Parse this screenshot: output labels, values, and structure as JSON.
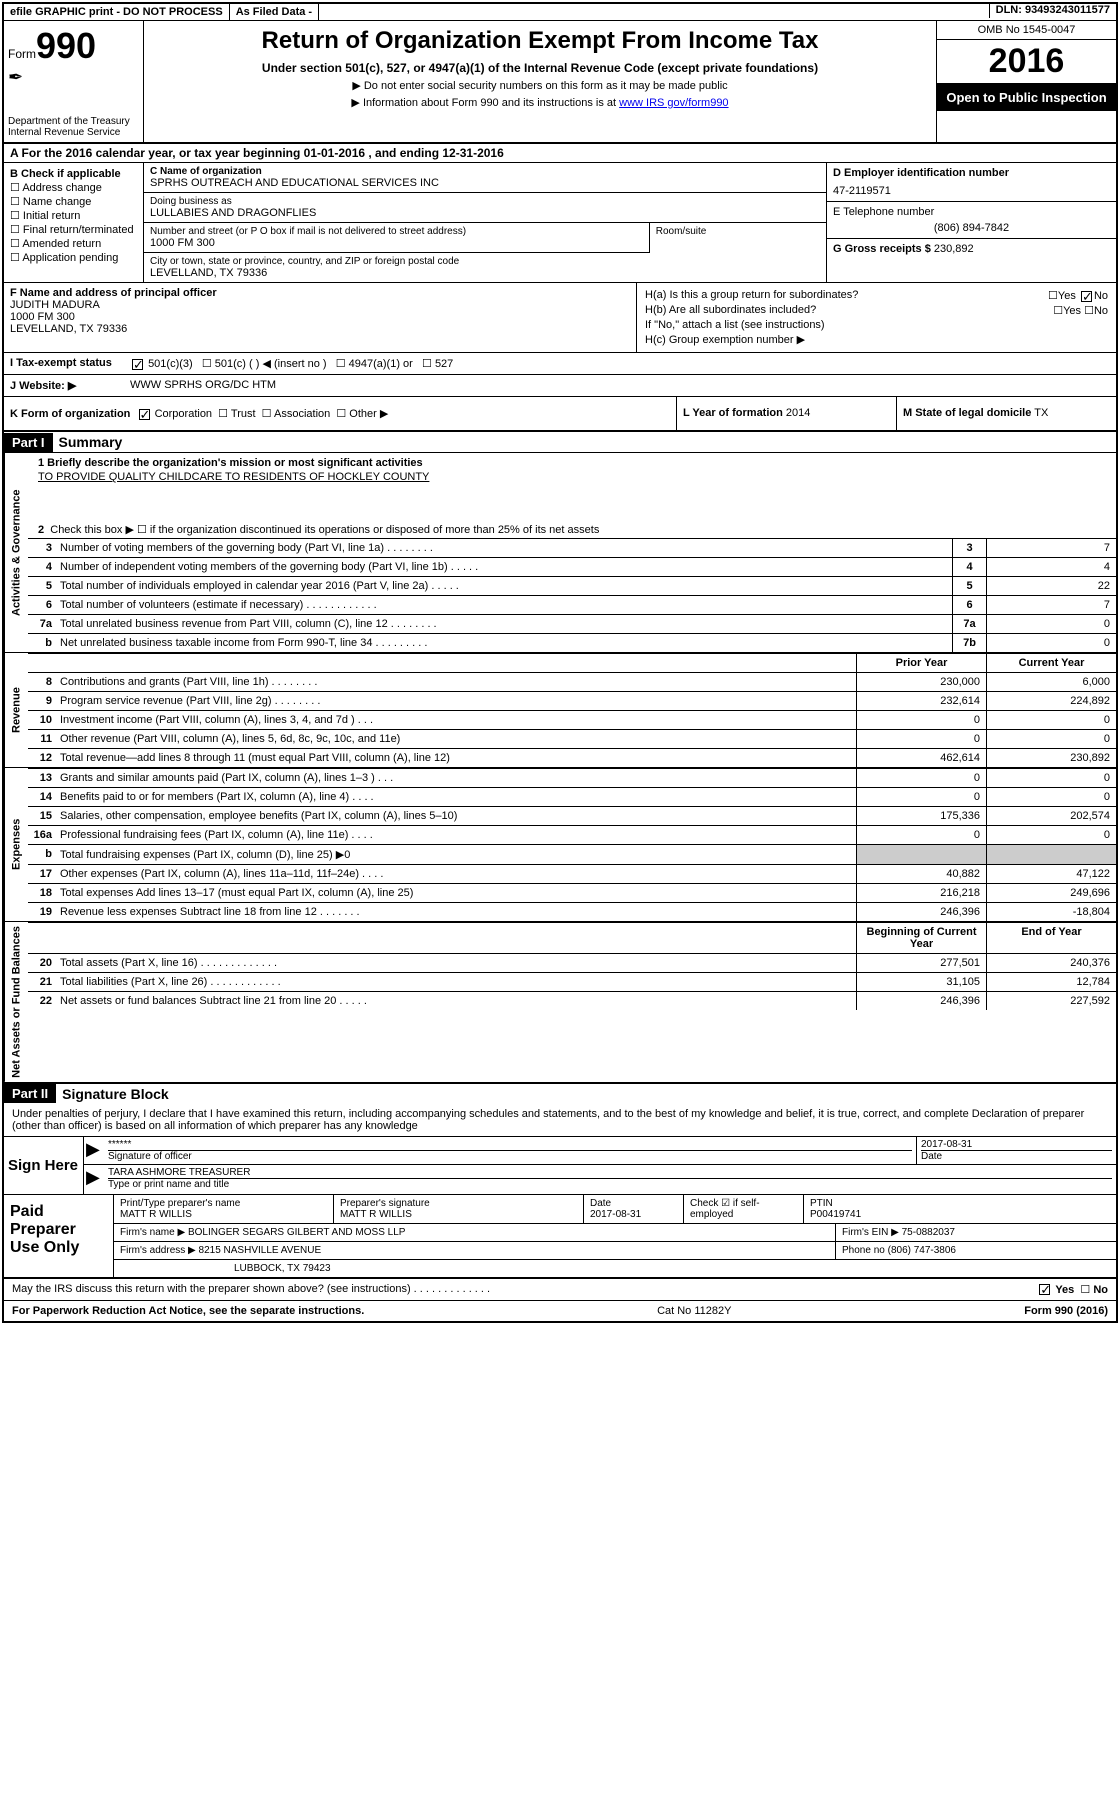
{
  "topbar": {
    "efile": "efile GRAPHIC print - DO NOT PROCESS",
    "asfiled": "As Filed Data -",
    "dln": "DLN: 93493243011577"
  },
  "header": {
    "form_prefix": "Form",
    "form_number": "990",
    "dept": "Department of the Treasury\nInternal Revenue Service",
    "title": "Return of Organization Exempt From Income Tax",
    "subtitle": "Under section 501(c), 527, or 4947(a)(1) of the Internal Revenue Code (except private foundations)",
    "note1": "▶ Do not enter social security numbers on this form as it may be made public",
    "note2_pre": "▶ Information about Form 990 and its instructions is at ",
    "note2_link": "www IRS gov/form990",
    "omb": "OMB No 1545-0047",
    "year": "2016",
    "inspect": "Open to Public Inspection"
  },
  "row_a": "A   For the 2016 calendar year, or tax year beginning 01-01-2016   , and ending 12-31-2016",
  "section_b": {
    "hdr": "B Check if applicable",
    "items": [
      "Address change",
      "Name change",
      "Initial return",
      "Final return/terminated",
      "Amended return",
      "Application pending"
    ]
  },
  "section_c": {
    "name_lbl": "C Name of organization",
    "name": "SPRHS OUTREACH AND EDUCATIONAL SERVICES INC",
    "dba_lbl": "Doing business as",
    "dba": "LULLABIES AND DRAGONFLIES",
    "addr_lbl": "Number and street (or P O  box if mail is not delivered to street address)",
    "room_lbl": "Room/suite",
    "addr": "1000 FM 300",
    "city_lbl": "City or town, state or province, country, and ZIP or foreign postal code",
    "city": "LEVELLAND, TX  79336"
  },
  "section_d": {
    "lbl": "D Employer identification number",
    "val": "47-2119571"
  },
  "section_e": {
    "lbl": "E Telephone number",
    "val": "(806) 894-7842"
  },
  "section_g": {
    "lbl": "G Gross receipts $",
    "val": "230,892"
  },
  "section_f": {
    "lbl": "F  Name and address of principal officer",
    "name": "JUDITH MADURA",
    "addr1": "1000 FM 300",
    "addr2": "LEVELLAND, TX  79336"
  },
  "section_h": {
    "ha": "H(a)  Is this a group return for subordinates?",
    "ha_yes": "Yes",
    "ha_no": "No",
    "hb": "H(b)  Are all subordinates included?",
    "hb_yes": "Yes",
    "hb_no": "No",
    "hb_note": "If \"No,\" attach a list  (see instructions)",
    "hc": "H(c)  Group exemption number ▶"
  },
  "section_i": {
    "lbl": "I   Tax-exempt status",
    "o1": "501(c)(3)",
    "o2": "501(c) (   ) ◀ (insert no )",
    "o3": "4947(a)(1) or",
    "o4": "527"
  },
  "section_j": {
    "lbl": "J   Website: ▶",
    "val": "WWW SPRHS ORG/DC HTM"
  },
  "section_k": {
    "lbl": "K Form of organization",
    "o1": "Corporation",
    "o2": "Trust",
    "o3": "Association",
    "o4": "Other ▶"
  },
  "section_l": {
    "lbl": "L Year of formation",
    "val": "2014"
  },
  "section_m": {
    "lbl": "M State of legal domicile",
    "val": "TX"
  },
  "part1": {
    "hdr": "Part I",
    "title": "Summary",
    "line1_lbl": "1 Briefly describe the organization's mission or most significant activities",
    "mission": "TO PROVIDE QUALITY CHILDCARE TO RESIDENTS OF HOCKLEY COUNTY",
    "line2": "Check this box ▶ ☐  if the organization discontinued its operations or disposed of more than 25% of its net assets",
    "side_gov": "Activities & Governance",
    "side_rev": "Revenue",
    "side_exp": "Expenses",
    "side_net": "Net Assets or Fund Balances",
    "prior_hdr": "Prior Year",
    "current_hdr": "Current Year",
    "bcy_hdr": "Beginning of Current Year",
    "eoy_hdr": "End of Year",
    "gov_lines": [
      {
        "n": "3",
        "d": "Number of voting members of the governing body (Part VI, line 1a)  .  .  .  .  .  .  .  .",
        "box": "3",
        "v": "7"
      },
      {
        "n": "4",
        "d": "Number of independent voting members of the governing body (Part VI, line 1b)  .  .  .  .  .",
        "box": "4",
        "v": "4"
      },
      {
        "n": "5",
        "d": "Total number of individuals employed in calendar year 2016 (Part V, line 2a)  .  .  .  .  .",
        "box": "5",
        "v": "22"
      },
      {
        "n": "6",
        "d": "Total number of volunteers (estimate if necessary)  .  .  .  .  .  .  .  .  .  .  .  .",
        "box": "6",
        "v": "7"
      },
      {
        "n": "7a",
        "d": "Total unrelated business revenue from Part VIII, column (C), line 12  .  .  .  .  .  .  .  .",
        "box": "7a",
        "v": "0"
      },
      {
        "n": "b",
        "d": "Net unrelated business taxable income from Form 990-T, line 34  .  .  .  .  .  .  .  .  .",
        "box": "7b",
        "v": "0"
      }
    ],
    "rev_lines": [
      {
        "n": "8",
        "d": "Contributions and grants (Part VIII, line 1h)  .  .  .  .  .  .  .  .",
        "p": "230,000",
        "c": "6,000"
      },
      {
        "n": "9",
        "d": "Program service revenue (Part VIII, line 2g)  .  .  .  .  .  .  .  .",
        "p": "232,614",
        "c": "224,892"
      },
      {
        "n": "10",
        "d": "Investment income (Part VIII, column (A), lines 3, 4, and 7d )  .  .  .",
        "p": "0",
        "c": "0"
      },
      {
        "n": "11",
        "d": "Other revenue (Part VIII, column (A), lines 5, 6d, 8c, 9c, 10c, and 11e)",
        "p": "0",
        "c": "0"
      },
      {
        "n": "12",
        "d": "Total revenue—add lines 8 through 11 (must equal Part VIII, column (A), line 12)",
        "p": "462,614",
        "c": "230,892"
      }
    ],
    "exp_lines": [
      {
        "n": "13",
        "d": "Grants and similar amounts paid (Part IX, column (A), lines 1–3 )  .  .  .",
        "p": "0",
        "c": "0"
      },
      {
        "n": "14",
        "d": "Benefits paid to or for members (Part IX, column (A), line 4)  .  .  .  .",
        "p": "0",
        "c": "0"
      },
      {
        "n": "15",
        "d": "Salaries, other compensation, employee benefits (Part IX, column (A), lines 5–10)",
        "p": "175,336",
        "c": "202,574"
      },
      {
        "n": "16a",
        "d": "Professional fundraising fees (Part IX, column (A), line 11e)  .  .  .  .",
        "p": "0",
        "c": "0"
      },
      {
        "n": "b",
        "d": "Total fundraising expenses (Part IX, column (D), line 25) ▶0",
        "p": "",
        "c": "",
        "gray": true
      },
      {
        "n": "17",
        "d": "Other expenses (Part IX, column (A), lines 11a–11d, 11f–24e)  .  .  .  .",
        "p": "40,882",
        "c": "47,122"
      },
      {
        "n": "18",
        "d": "Total expenses  Add lines 13–17 (must equal Part IX, column (A), line 25)",
        "p": "216,218",
        "c": "249,696"
      },
      {
        "n": "19",
        "d": "Revenue less expenses  Subtract line 18 from line 12 .  .  .  .  .  .  .",
        "p": "246,396",
        "c": "-18,804"
      }
    ],
    "net_lines": [
      {
        "n": "20",
        "d": "Total assets (Part X, line 16)  .  .  .  .  .  .  .  .  .  .  .  .  .",
        "p": "277,501",
        "c": "240,376"
      },
      {
        "n": "21",
        "d": "Total liabilities (Part X, line 26)  .  .  .  .  .  .  .  .  .  .  .  .",
        "p": "31,105",
        "c": "12,784"
      },
      {
        "n": "22",
        "d": "Net assets or fund balances  Subtract line 21 from line 20 .  .  .  .  .",
        "p": "246,396",
        "c": "227,592"
      }
    ]
  },
  "part2": {
    "hdr": "Part II",
    "title": "Signature Block",
    "declaration": "Under penalties of perjury, I declare that I have examined this return, including accompanying schedules and statements, and to the best of my knowledge and belief, it is true, correct, and complete  Declaration of preparer (other than officer) is based on all information of which preparer has any knowledge"
  },
  "sign": {
    "hdr": "Sign Here",
    "sig_stars": "******",
    "sig_lbl": "Signature of officer",
    "date": "2017-08-31",
    "date_lbl": "Date",
    "name": "TARA ASHMORE TREASURER",
    "name_lbl": "Type or print name and title"
  },
  "paid": {
    "hdr": "Paid Preparer Use Only",
    "r1": {
      "c1_lbl": "Print/Type preparer's name",
      "c1": "MATT R WILLIS",
      "c2_lbl": "Preparer's signature",
      "c2": "MATT R WILLIS",
      "c3_lbl": "Date",
      "c3": "2017-08-31",
      "c4_lbl": "Check ☑ if self-employed",
      "c5_lbl": "PTIN",
      "c5": "P00419741"
    },
    "r2": {
      "lbl": "Firm's name      ▶",
      "val": "BOLINGER SEGARS GILBERT AND MOSS LLP",
      "ein_lbl": "Firm's EIN ▶",
      "ein": "75-0882037"
    },
    "r3": {
      "lbl": "Firm's address ▶",
      "val": "8215 NASHVILLE AVENUE",
      "ph_lbl": "Phone no",
      "ph": "(806) 747-3806"
    },
    "r4": "LUBBOCK, TX  79423"
  },
  "discuss": {
    "q": "May the IRS discuss this return with the preparer shown above? (see instructions)  .  .  .  .  .  .  .  .  .  .  .  .  .",
    "yes": "Yes",
    "no": "No"
  },
  "footer": {
    "left": "For Paperwork Reduction Act Notice, see the separate instructions.",
    "mid": "Cat  No  11282Y",
    "right": "Form 990 (2016)"
  }
}
